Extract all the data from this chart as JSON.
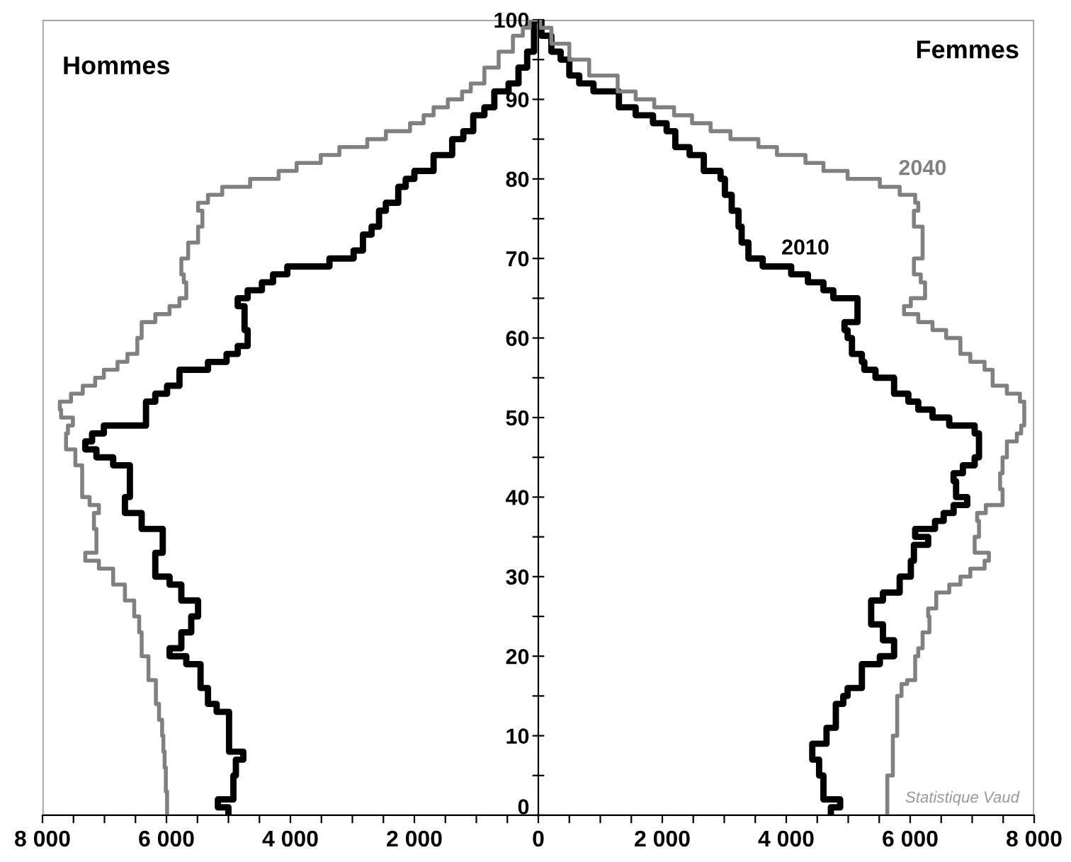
{
  "chart_data": {
    "type": "step",
    "xlim": [
      -8000,
      8000
    ],
    "ylim": [
      0,
      100
    ],
    "xticks": [
      {
        "value": -8000,
        "label": "8 000"
      },
      {
        "value": -7500,
        "label": null
      },
      {
        "value": -7000,
        "label": null
      },
      {
        "value": -6500,
        "label": null
      },
      {
        "value": -6000,
        "label": "6 000"
      },
      {
        "value": -5500,
        "label": null
      },
      {
        "value": -5000,
        "label": null
      },
      {
        "value": -4500,
        "label": null
      },
      {
        "value": -4000,
        "label": "4 000"
      },
      {
        "value": -3500,
        "label": null
      },
      {
        "value": -3000,
        "label": null
      },
      {
        "value": -2500,
        "label": null
      },
      {
        "value": -2000,
        "label": "2 000"
      },
      {
        "value": -1500,
        "label": null
      },
      {
        "value": -1000,
        "label": null
      },
      {
        "value": -500,
        "label": null
      },
      0,
      {
        "value": 500,
        "label": null
      },
      {
        "value": 1000,
        "label": null
      },
      {
        "value": 1500,
        "label": null
      },
      {
        "value": 2000,
        "label": "2 000"
      },
      {
        "value": 2500,
        "label": null
      },
      {
        "value": 3000,
        "label": null
      },
      {
        "value": 3500,
        "label": null
      },
      {
        "value": 4000,
        "label": "4 000"
      },
      {
        "value": 4500,
        "label": null
      },
      {
        "value": 5000,
        "label": null
      },
      {
        "value": 5500,
        "label": null
      },
      {
        "value": 6000,
        "label": "6 000"
      },
      {
        "value": 6500,
        "label": null
      },
      {
        "value": 7000,
        "label": null
      },
      {
        "value": 7500,
        "label": null
      },
      {
        "value": 8000,
        "label": "8 000"
      }
    ],
    "yticks": [
      0,
      {
        "value": 5,
        "label": null
      },
      10,
      {
        "value": 15,
        "label": null
      },
      20,
      {
        "value": 25,
        "label": null
      },
      30,
      {
        "value": 35,
        "label": null
      },
      40,
      {
        "value": 45,
        "label": null
      },
      50,
      {
        "value": 55,
        "label": null
      },
      60,
      {
        "value": 65,
        "label": null
      },
      70,
      {
        "value": 75,
        "label": null
      },
      80,
      {
        "value": 85,
        "label": null
      },
      90,
      {
        "value": 95,
        "label": null
      },
      100
    ],
    "grid": false,
    "legend": false,
    "series": [
      {
        "name": "2010",
        "color": "#000000",
        "x": [
          -5000,
          -5170,
          -4920,
          -4880,
          -4760,
          -4990,
          -5190,
          -5330,
          -5450,
          -5680,
          -5950,
          -5760,
          -5600,
          -5490,
          -5760,
          -5950,
          -6180,
          -6060,
          -6400,
          -6670,
          -6590,
          -6860,
          -7130,
          -7310,
          -7200,
          -7010,
          -6330,
          -6180,
          -5990,
          -5790,
          -5330,
          -5030,
          -4850,
          -4690,
          -4740,
          -4850,
          -4690,
          -4460,
          -4280,
          -4050,
          -3370,
          -2980,
          -2830,
          -2690,
          -2570,
          -2460,
          -2260,
          -2140,
          -2000,
          -1690,
          -1390,
          -1210,
          -1050,
          -870,
          -710,
          -480,
          -320,
          -180,
          -70,
          0,
          50,
          210,
          360,
          500,
          660,
          890,
          1300,
          1570,
          1850,
          2070,
          2210,
          2440,
          2670,
          2940,
          3010,
          3120,
          3230,
          3280,
          3390,
          3620,
          4080,
          4350,
          4600,
          4760,
          5150,
          4940,
          4990,
          5060,
          5220,
          5260,
          5440,
          5740,
          5970,
          6130,
          6360,
          6630,
          7040,
          7110,
          7040,
          6850,
          6700,
          6740,
          6920,
          6700,
          6540,
          6400,
          6080,
          6290,
          6060,
          6010,
          5830,
          5560,
          5370,
          5560,
          5740,
          5510,
          5220,
          4990,
          4920,
          4800,
          4650,
          4420,
          4530,
          4600,
          4870,
          4720,
          4720
        ],
        "values": [
          0,
          1,
          2,
          5,
          7,
          8,
          13,
          14,
          16,
          19,
          20,
          21,
          23,
          25,
          27,
          29,
          30,
          33,
          36,
          38,
          40,
          44,
          45,
          46,
          47,
          48,
          49,
          52,
          53,
          54,
          56,
          57,
          58,
          59,
          61,
          64,
          65,
          66,
          67,
          68,
          69,
          70,
          71,
          73,
          74,
          76,
          77,
          79,
          80,
          81,
          83,
          85,
          86,
          88,
          89,
          91,
          92,
          94,
          96,
          100,
          100,
          98,
          96,
          95,
          93,
          92,
          91,
          89,
          88,
          87,
          86,
          84,
          83,
          81,
          80,
          78,
          76,
          74,
          72,
          70,
          69,
          68,
          67,
          66,
          65,
          62,
          61,
          60,
          58,
          57,
          56,
          55,
          53,
          52,
          51,
          50,
          49,
          48,
          45,
          44,
          43,
          42,
          40,
          39,
          38,
          37,
          36,
          35,
          34,
          32,
          30,
          28,
          27,
          24,
          22,
          20,
          19,
          16,
          15,
          14,
          11,
          9,
          7,
          5,
          2,
          1,
          0
        ]
      },
      {
        "name": "2040",
        "color": "#808080",
        "x": [
          -5990,
          -6010,
          -6030,
          -6050,
          -6070,
          -6120,
          -6170,
          -6290,
          -6400,
          -6440,
          -6520,
          -6670,
          -6860,
          -7090,
          -7310,
          -7130,
          -7170,
          -7090,
          -7240,
          -7360,
          -7470,
          -7620,
          -7590,
          -7510,
          -7700,
          -7720,
          -7540,
          -7350,
          -7150,
          -7010,
          -6790,
          -6630,
          -6470,
          -6400,
          -6180,
          -5950,
          -5790,
          -5680,
          -5720,
          -5760,
          -5650,
          -5490,
          -5420,
          -5490,
          -5330,
          -5100,
          -4650,
          -4190,
          -3900,
          -3510,
          -3210,
          -2760,
          -2460,
          -2070,
          -1850,
          -1690,
          -1460,
          -1230,
          -1090,
          -870,
          -640,
          -410,
          -250,
          -140,
          0,
          30,
          210,
          500,
          820,
          1280,
          1570,
          1870,
          2190,
          2480,
          2780,
          3100,
          3550,
          3850,
          4310,
          4600,
          4990,
          5510,
          5830,
          6080,
          6130,
          6060,
          6200,
          6200,
          6060,
          6170,
          6240,
          6010,
          5900,
          6130,
          6360,
          6580,
          6810,
          6970,
          7200,
          7330,
          7560,
          7770,
          7840,
          7790,
          7720,
          7560,
          7490,
          7450,
          7490,
          7220,
          7080,
          7110,
          7040,
          7270,
          7200,
          6970,
          6810,
          6630,
          6420,
          6290,
          6310,
          6200,
          6130,
          6080,
          5950,
          5860,
          5790,
          5720,
          5630,
          5630
        ],
        "values": [
          0,
          3,
          6,
          8,
          10,
          12,
          14,
          17,
          20,
          23,
          25,
          27,
          29,
          31,
          32,
          33,
          36,
          38,
          39,
          40,
          44,
          46,
          48,
          49,
          50,
          51,
          52,
          53,
          54,
          55,
          56,
          57,
          58,
          60,
          62,
          63,
          64,
          65,
          67,
          68,
          70,
          72,
          74,
          76,
          77,
          78,
          79,
          80,
          81,
          82,
          83,
          84,
          85,
          86,
          87,
          88,
          89,
          90,
          91,
          92,
          94,
          96,
          98,
          99,
          100,
          100,
          99,
          97,
          95,
          93,
          91,
          90,
          89,
          88,
          87,
          86,
          85,
          84,
          83,
          82,
          81,
          80,
          79,
          78,
          77,
          76,
          74,
          72,
          70,
          68,
          67,
          65,
          64,
          63,
          62,
          61,
          60,
          58,
          57,
          56,
          54,
          53,
          52,
          49,
          48,
          47,
          45,
          43,
          41,
          39,
          38,
          37,
          35,
          33,
          32,
          31,
          30,
          29,
          28,
          26,
          25,
          23,
          21,
          20,
          17,
          16.5,
          15,
          10,
          5,
          0
        ]
      }
    ],
    "annotations": [
      "Hommes",
      "Femmes",
      "Statistique Vaud"
    ]
  }
}
